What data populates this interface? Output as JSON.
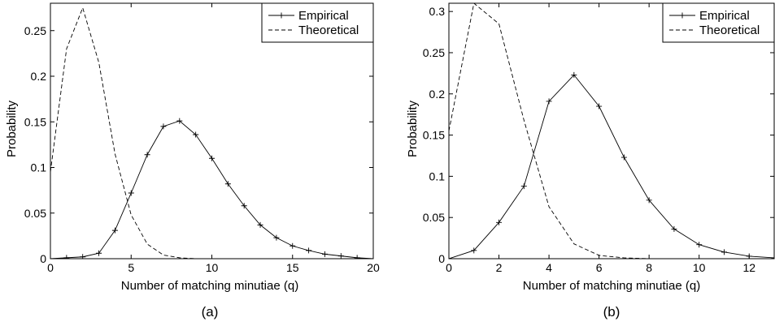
{
  "chart_data": [
    {
      "type": "line",
      "panel_label": "(a)",
      "xlabel": "Number of matching minutiae (q)",
      "ylabel": "Probability",
      "xlim": [
        0,
        20
      ],
      "ylim": [
        0,
        0.28
      ],
      "xticks": [
        0,
        5,
        10,
        15,
        20
      ],
      "yticks": [
        0,
        0.05,
        0.1,
        0.15,
        0.2,
        0.25
      ],
      "ytick_labels": [
        "0",
        "0.05",
        "0.1",
        "0.15",
        "0.2",
        "0.25"
      ],
      "grid": false,
      "legend_position": "top-right",
      "series": [
        {
          "name": "Empirical",
          "style": "solid-plus",
          "x": [
            0,
            1,
            2,
            3,
            4,
            5,
            6,
            7,
            8,
            9,
            10,
            11,
            12,
            13,
            14,
            15,
            16,
            17,
            18,
            19,
            20
          ],
          "y": [
            0,
            0.001,
            0.002,
            0.006,
            0.031,
            0.072,
            0.114,
            0.145,
            0.151,
            0.136,
            0.11,
            0.082,
            0.058,
            0.037,
            0.023,
            0.014,
            0.009,
            0.005,
            0.003,
            0.001,
            0
          ]
        },
        {
          "name": "Theoretical",
          "style": "dashed",
          "x": [
            0,
            1,
            2,
            3,
            4,
            5,
            6,
            7,
            8,
            9,
            10,
            11,
            12,
            13,
            14,
            15,
            16,
            17,
            18,
            19,
            20
          ],
          "y": [
            0.095,
            0.23,
            0.275,
            0.215,
            0.115,
            0.048,
            0.016,
            0.004,
            0.001,
            0,
            0,
            0,
            0,
            0,
            0,
            0,
            0,
            0,
            0,
            0,
            0
          ]
        }
      ]
    },
    {
      "type": "line",
      "panel_label": "(b)",
      "xlabel": "Number of matching minutiae (q)",
      "ylabel": "Probability",
      "xlim": [
        0,
        13
      ],
      "ylim": [
        0,
        0.31
      ],
      "xticks": [
        0,
        2,
        4,
        6,
        8,
        10,
        12
      ],
      "yticks": [
        0,
        0.05,
        0.1,
        0.15,
        0.2,
        0.25,
        0.3
      ],
      "ytick_labels": [
        "0",
        "0.05",
        "0.1",
        "0.15",
        "0.2",
        "0.25",
        "0.3"
      ],
      "grid": false,
      "legend_position": "top-right",
      "series": [
        {
          "name": "Empirical",
          "style": "solid-plus",
          "x": [
            0,
            1,
            2,
            3,
            4,
            5,
            6,
            7,
            8,
            9,
            10,
            11,
            12,
            13
          ],
          "y": [
            0,
            0.01,
            0.044,
            0.088,
            0.191,
            0.223,
            0.185,
            0.123,
            0.071,
            0.036,
            0.017,
            0.008,
            0.003,
            0.001
          ]
        },
        {
          "name": "Theoretical",
          "style": "dashed",
          "x": [
            0,
            1,
            2,
            3,
            4,
            5,
            6,
            7,
            8,
            9,
            10,
            11,
            12,
            13
          ],
          "y": [
            0.155,
            0.31,
            0.285,
            0.168,
            0.063,
            0.018,
            0.004,
            0.001,
            0,
            0,
            0,
            0,
            0,
            0
          ]
        }
      ]
    }
  ]
}
